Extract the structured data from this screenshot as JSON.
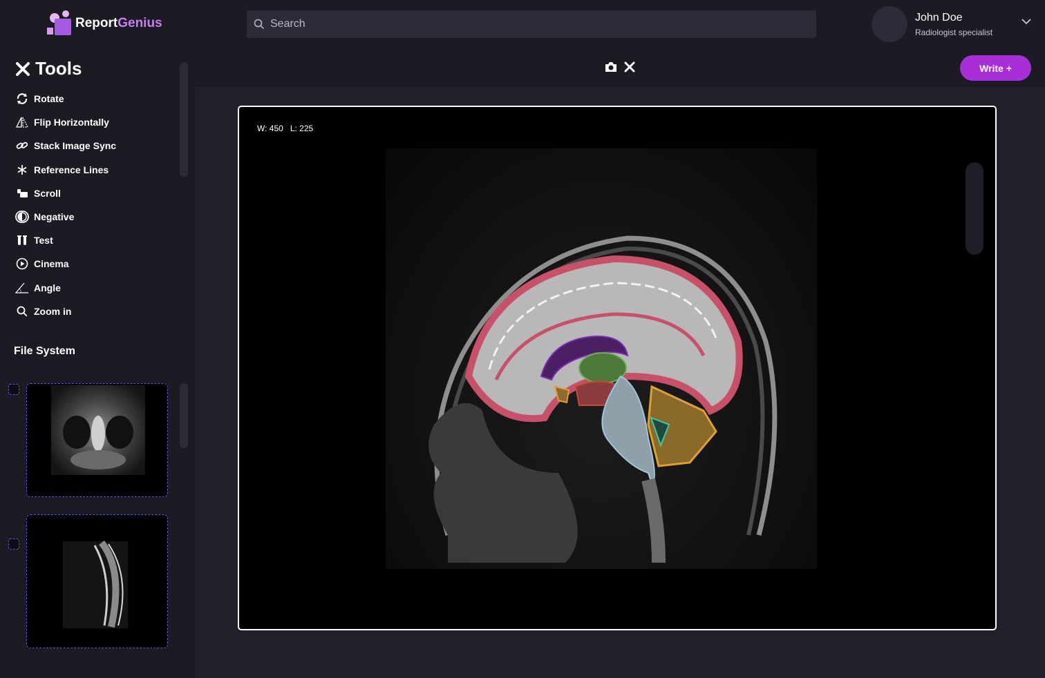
{
  "brand": {
    "part1": "Report",
    "part2": "Genius"
  },
  "search": {
    "placeholder": "Search",
    "value": ""
  },
  "user": {
    "name": "John Doe",
    "role": "Radiologist specialist"
  },
  "tools": {
    "title": "Tools",
    "items": [
      {
        "label": "Rotate",
        "icon": "rotate-icon"
      },
      {
        "label": "Flip Horizontally",
        "icon": "flip-icon"
      },
      {
        "label": "Stack Image Sync",
        "icon": "link-icon"
      },
      {
        "label": "Reference Lines",
        "icon": "asterisk-icon"
      },
      {
        "label": "Scroll",
        "icon": "scroll-icon"
      },
      {
        "label": "Negative",
        "icon": "contrast-icon"
      },
      {
        "label": "Test",
        "icon": "test-tubes-icon"
      },
      {
        "label": "Cinema",
        "icon": "play-icon"
      },
      {
        "label": "Angle",
        "icon": "angle-icon"
      },
      {
        "label": "Zoom in",
        "icon": "zoom-icon"
      }
    ]
  },
  "file_system": {
    "title": "File System"
  },
  "toolbar": {
    "write_label": "Write +"
  },
  "viewer": {
    "window": "W: 450",
    "level": "L: 225"
  },
  "colors": {
    "accent": "#a82fd8",
    "background": "#1c1b24",
    "panel": "#20202a"
  }
}
